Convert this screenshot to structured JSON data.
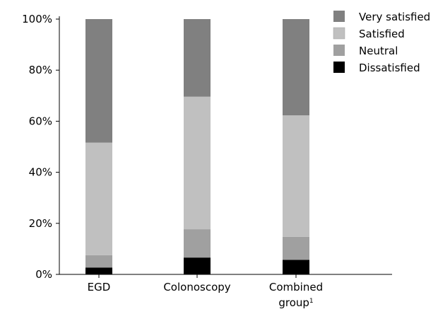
{
  "chart_data": {
    "type": "bar",
    "stacked": true,
    "categories": [
      "EGD",
      "Colonoscopy",
      "Combined group"
    ],
    "category_superscripts": [
      "",
      "",
      "1"
    ],
    "series": [
      {
        "name": "Dissatisfied",
        "color": "#000000",
        "values": [
          2.7,
          6.6,
          5.7
        ]
      },
      {
        "name": "Neutral",
        "color": "#a0a0a0",
        "values": [
          4.8,
          11.1,
          9.0
        ]
      },
      {
        "name": "Satisfied",
        "color": "#c0c0c0",
        "values": [
          44.1,
          51.9,
          47.6
        ]
      },
      {
        "name": "Very satisfied",
        "color": "#808080",
        "values": [
          48.4,
          30.4,
          37.7
        ]
      }
    ],
    "yaxis": {
      "ticks": [
        0,
        20,
        40,
        60,
        80,
        100
      ],
      "tick_labels": [
        "0%",
        "20%",
        "40%",
        "60%",
        "80%",
        "100%"
      ],
      "ylim": [
        0,
        100
      ]
    },
    "legend_order": [
      "Very satisfied",
      "Satisfied",
      "Neutral",
      "Dissatisfied"
    ],
    "legend_position": "top-right",
    "grid": false
  }
}
